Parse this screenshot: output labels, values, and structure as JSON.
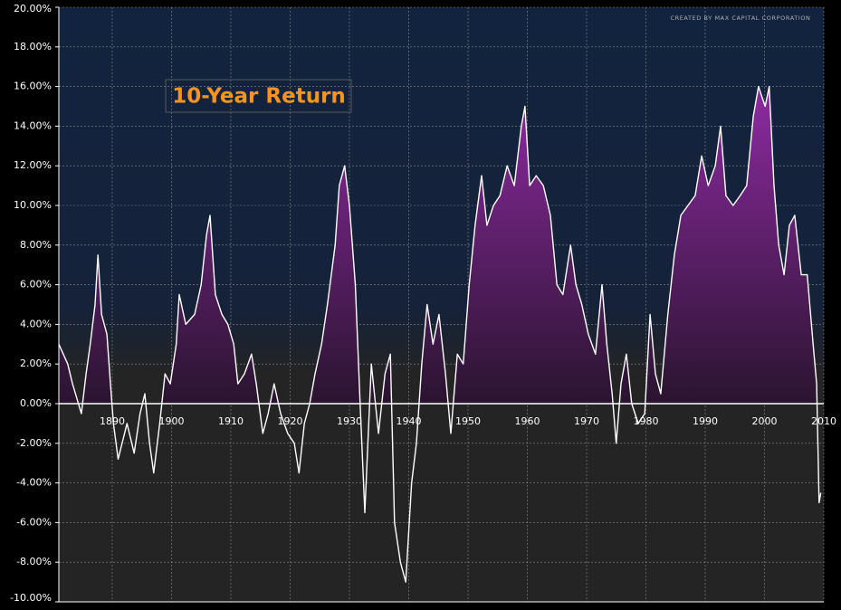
{
  "chart_data": {
    "type": "area-line",
    "title": "10-Year Return",
    "credit": "CREATED BY MAX CAPITAL CORPORATION",
    "color": "#ffffff",
    "fill_color": "#9b2db0",
    "grid": true,
    "xlim": [
      1881,
      2010
    ],
    "ylim": [
      -10,
      20
    ],
    "xticks": [
      1890,
      1900,
      1910,
      1920,
      1930,
      1940,
      1950,
      1960,
      1970,
      1980,
      1990,
      2000,
      2010
    ],
    "yticks": [
      {
        "value": -10,
        "label": "-10.00%"
      },
      {
        "value": -8,
        "label": "-8.00%"
      },
      {
        "value": -6,
        "label": "-6.00%"
      },
      {
        "value": -4,
        "label": "-4.00%"
      },
      {
        "value": -2,
        "label": "-2.00%"
      },
      {
        "value": 0,
        "label": "0.00%"
      },
      {
        "value": 2,
        "label": "2.00%"
      },
      {
        "value": 4,
        "label": "4.00%"
      },
      {
        "value": 6,
        "label": "6.00%"
      },
      {
        "value": 8,
        "label": "8.00%"
      },
      {
        "value": 10,
        "label": "10.00%"
      },
      {
        "value": 12,
        "label": "12.00%"
      },
      {
        "value": 14,
        "label": "14.00%"
      },
      {
        "value": 16,
        "label": "16.00%"
      },
      {
        "value": 18,
        "label": "18.00%"
      },
      {
        "value": 20,
        "label": "20.00%"
      }
    ],
    "x": [
      1881,
      1882.5,
      1883.3,
      1884.8,
      1885.6,
      1886.3,
      1887.1,
      1887.6,
      1888.2,
      1889.1,
      1889.7,
      1890.2,
      1891,
      1892.5,
      1893.7,
      1894.7,
      1895.5,
      1896.3,
      1897,
      1898,
      1898.9,
      1899.8,
      1900.8,
      1901.3,
      1902.4,
      1903.9,
      1905,
      1905.9,
      1906.5,
      1907.4,
      1908.5,
      1909.5,
      1910.5,
      1911.2,
      1912.3,
      1913.5,
      1914.3,
      1915.4,
      1916.3,
      1917.3,
      1918.4,
      1919.6,
      1920.7,
      1921.5,
      1922.4,
      1923.3,
      1924.2,
      1925.3,
      1926.3,
      1927.6,
      1928.3,
      1929.2,
      1930,
      1931,
      1931.8,
      1932.6,
      1933.7,
      1934.9,
      1936,
      1936.9,
      1937.6,
      1938.6,
      1939.5,
      1940.5,
      1941.3,
      1942.2,
      1943.1,
      1944.1,
      1945.1,
      1946.2,
      1947.1,
      1948.2,
      1949.2,
      1950.2,
      1951.2,
      1952.3,
      1953.2,
      1954.3,
      1955.4,
      1956.6,
      1957.8,
      1959,
      1959.6,
      1960.4,
      1961.5,
      1962.7,
      1963.9,
      1965,
      1966,
      1967.3,
      1968.2,
      1969.2,
      1970.3,
      1971.5,
      1972.6,
      1973.4,
      1974.3,
      1975,
      1975.8,
      1976.7,
      1977.6,
      1978.7,
      1979.8,
      1980.7,
      1981.6,
      1982.5,
      1983.7,
      1984.8,
      1985.9,
      1987.1,
      1988.3,
      1989.4,
      1990.5,
      1991.7,
      1992.6,
      1993.5,
      1994.7,
      1995.9,
      1997,
      1998.1,
      1999,
      2000.1,
      2000.8,
      2001.6,
      2002.4,
      2003.3,
      2004.2,
      2005.1,
      2006.2,
      2007.2,
      2008.2,
      2008.8,
      2009.2,
      2009.5
    ],
    "values": [
      3,
      2,
      1,
      -0.5,
      1.5,
      3,
      5,
      7.5,
      4.5,
      3.5,
      1,
      -1,
      -2.8,
      -1,
      -2.5,
      -0.5,
      0.5,
      -2,
      -3.5,
      -1,
      1.5,
      1,
      3,
      5.5,
      4,
      4.5,
      6,
      8.5,
      9.5,
      5.5,
      4.5,
      4,
      3,
      1,
      1.5,
      2.5,
      1,
      -1.5,
      -0.5,
      1,
      -0.5,
      -1.5,
      -2,
      -3.5,
      -1,
      0,
      1.5,
      3,
      5,
      8,
      11,
      12,
      10,
      6,
      0,
      -5.5,
      2,
      -1.5,
      1.5,
      2.5,
      -6,
      -8,
      -9,
      -4,
      -2,
      2,
      5,
      3,
      4.5,
      1.5,
      -1.5,
      2.5,
      2,
      6,
      9,
      11.5,
      9,
      10,
      10.5,
      12,
      11,
      14,
      15,
      11,
      11.5,
      11,
      9.5,
      6,
      5.5,
      8,
      6,
      5,
      3.5,
      2.5,
      6,
      3,
      0.5,
      -2,
      1,
      2.5,
      0,
      -1,
      -0.5,
      4.5,
      1.5,
      0.5,
      4.5,
      7.5,
      9.5,
      10,
      10.5,
      12.5,
      11,
      12,
      14,
      10.5,
      10,
      10.5,
      11,
      14.5,
      16,
      15,
      16,
      11,
      8,
      6.5,
      9,
      9.5,
      6.5,
      6.5,
      3,
      1,
      -5,
      -4.5
    ]
  }
}
